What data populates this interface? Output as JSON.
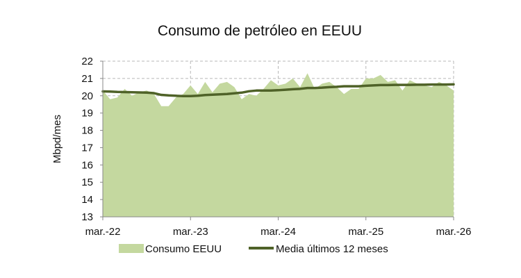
{
  "chart_data": {
    "type": "area",
    "title": "Consumo de petróleo en EEUU",
    "ylabel": "Mbpd/mes",
    "xlabel": "",
    "ylim": [
      13,
      22
    ],
    "yticks": [
      13,
      14,
      15,
      16,
      17,
      18,
      19,
      20,
      21,
      22
    ],
    "xlim": [
      "2022-03",
      "2026-03"
    ],
    "xticks": [
      "mar.-22",
      "mar.-23",
      "mar.-24",
      "mar.-25",
      "mar.-26"
    ],
    "grid": true,
    "legend": "bottom",
    "x": [
      "2022-03",
      "2022-04",
      "2022-05",
      "2022-06",
      "2022-07",
      "2022-08",
      "2022-09",
      "2022-10",
      "2022-11",
      "2022-12",
      "2023-01",
      "2023-02",
      "2023-03",
      "2023-04",
      "2023-05",
      "2023-06",
      "2023-07",
      "2023-08",
      "2023-09",
      "2023-10",
      "2023-11",
      "2023-12",
      "2024-01",
      "2024-02",
      "2024-03",
      "2024-04",
      "2024-05",
      "2024-06",
      "2024-07",
      "2024-08",
      "2024-09",
      "2024-10",
      "2024-11",
      "2024-12",
      "2025-01",
      "2025-02",
      "2025-03",
      "2025-04",
      "2025-05",
      "2025-06",
      "2025-07",
      "2025-08",
      "2025-09",
      "2025-10",
      "2025-11",
      "2025-12",
      "2026-01",
      "2026-02",
      "2026-03"
    ],
    "series": [
      {
        "name": "Consumo EEUU",
        "type": "area",
        "color": "#c4d89f",
        "values": [
          20.3,
          19.8,
          19.9,
          20.4,
          20.0,
          20.2,
          20.3,
          20.1,
          19.4,
          19.4,
          19.9,
          20.1,
          20.6,
          20.1,
          20.8,
          20.2,
          20.7,
          20.8,
          20.5,
          19.8,
          20.1,
          20.0,
          20.4,
          20.9,
          20.6,
          20.7,
          21.0,
          20.5,
          21.3,
          20.4,
          20.7,
          20.8,
          20.5,
          20.1,
          20.4,
          20.4,
          21.0,
          21.0,
          21.2,
          20.8,
          20.9,
          20.3,
          20.9,
          20.7,
          20.6,
          20.5,
          20.8,
          20.6,
          20.3
        ]
      },
      {
        "name": "Media últimos 12 meses",
        "type": "line",
        "color": "#4f6228",
        "values": [
          20.25,
          20.24,
          20.22,
          20.21,
          20.2,
          20.19,
          20.18,
          20.15,
          20.05,
          20.02,
          20.0,
          19.98,
          19.98,
          20.0,
          20.04,
          20.06,
          20.08,
          20.1,
          20.14,
          20.18,
          20.26,
          20.3,
          20.3,
          20.3,
          20.32,
          20.35,
          20.38,
          20.4,
          20.45,
          20.45,
          20.47,
          20.5,
          20.52,
          20.55,
          20.55,
          20.55,
          20.58,
          20.6,
          20.62,
          20.62,
          20.63,
          20.63,
          20.63,
          20.64,
          20.64,
          20.65,
          20.65,
          20.65,
          20.66
        ]
      }
    ]
  }
}
